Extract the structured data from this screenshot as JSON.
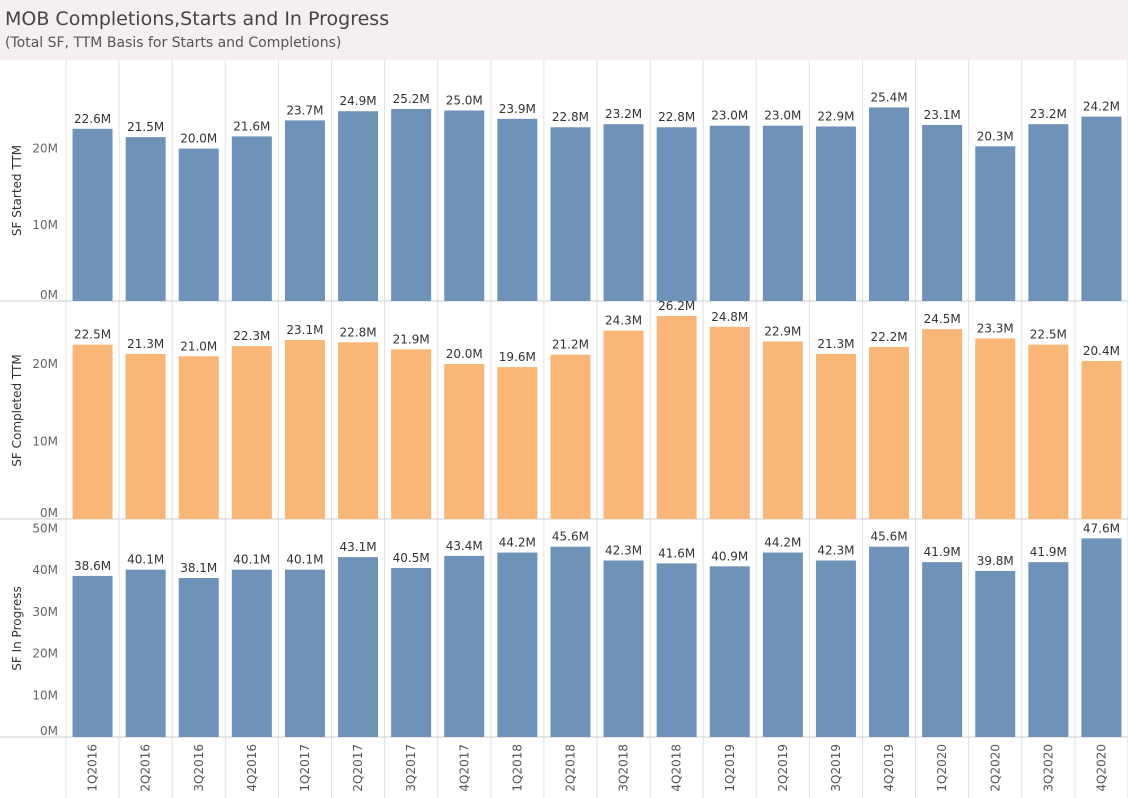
{
  "header": {
    "title": "MOB Completions,Starts and In Progress",
    "subtitle": "(Total SF, TTM Basis for Starts and Completions)"
  },
  "chart_data": {
    "type": "bar",
    "categories": [
      "1Q2016",
      "2Q2016",
      "3Q2016",
      "4Q2016",
      "1Q2017",
      "2Q2017",
      "3Q2017",
      "4Q2017",
      "1Q2018",
      "2Q2018",
      "3Q2018",
      "4Q2018",
      "1Q2019",
      "2Q2019",
      "3Q2019",
      "4Q2019",
      "1Q2020",
      "2Q2020",
      "3Q2020",
      "4Q2020"
    ],
    "panels": [
      {
        "name": "SF Started TTM",
        "ylabel": "SF Started TTM",
        "color": "#6f93b8",
        "ylim": [
          0,
          29
        ],
        "ticks": [
          0,
          10,
          20
        ],
        "tick_labels": [
          "0M",
          "10M",
          "20M"
        ],
        "values": [
          22.6,
          21.5,
          20.0,
          21.6,
          23.7,
          24.9,
          25.2,
          25.0,
          23.9,
          22.8,
          23.2,
          22.8,
          23.0,
          23.0,
          22.9,
          25.4,
          23.1,
          20.3,
          23.2,
          24.2
        ],
        "value_labels": [
          "22.6M",
          "21.5M",
          "20.0M",
          "21.6M",
          "23.7M",
          "24.9M",
          "25.2M",
          "25.0M",
          "23.9M",
          "22.8M",
          "23.2M",
          "22.8M",
          "23.0M",
          "23.0M",
          "22.9M",
          "25.4M",
          "23.1M",
          "20.3M",
          "23.2M",
          "24.2M"
        ]
      },
      {
        "name": "SF Completed TTM",
        "ylabel": "SF Completed TTM",
        "color": "#f9b677",
        "ylim": [
          0,
          28
        ],
        "ticks": [
          0,
          10,
          20
        ],
        "tick_labels": [
          "0M",
          "10M",
          "20M"
        ],
        "values": [
          22.5,
          21.3,
          21.0,
          22.3,
          23.1,
          22.8,
          21.9,
          20.0,
          19.6,
          21.2,
          24.3,
          26.2,
          24.8,
          22.9,
          21.3,
          22.2,
          24.5,
          23.3,
          22.5,
          20.4
        ],
        "value_labels": [
          "22.5M",
          "21.3M",
          "21.0M",
          "22.3M",
          "23.1M",
          "22.8M",
          "21.9M",
          "20.0M",
          "19.6M",
          "21.2M",
          "24.3M",
          "26.2M",
          "24.8M",
          "22.9M",
          "21.3M",
          "22.2M",
          "24.5M",
          "23.3M",
          "22.5M",
          "20.4M"
        ]
      },
      {
        "name": "SF In Progress",
        "ylabel": "SF In Progress",
        "color": "#6f93b8",
        "ylim": [
          0,
          52
        ],
        "ticks": [
          0,
          10,
          20,
          30,
          40,
          50
        ],
        "tick_labels": [
          "0M",
          "10M",
          "20M",
          "30M",
          "40M",
          "50M"
        ],
        "values": [
          38.6,
          40.1,
          38.1,
          40.1,
          40.1,
          43.1,
          40.5,
          43.4,
          44.2,
          45.6,
          42.3,
          41.6,
          40.9,
          44.2,
          42.3,
          45.6,
          41.9,
          39.8,
          41.9,
          47.6
        ],
        "value_labels": [
          "38.6M",
          "40.1M",
          "38.1M",
          "40.1M",
          "40.1M",
          "43.1M",
          "40.5M",
          "43.4M",
          "44.2M",
          "45.6M",
          "42.3M",
          "41.6M",
          "40.9M",
          "44.2M",
          "42.3M",
          "45.6M",
          "41.9M",
          "39.8M",
          "41.9M",
          "47.6M"
        ]
      }
    ]
  }
}
